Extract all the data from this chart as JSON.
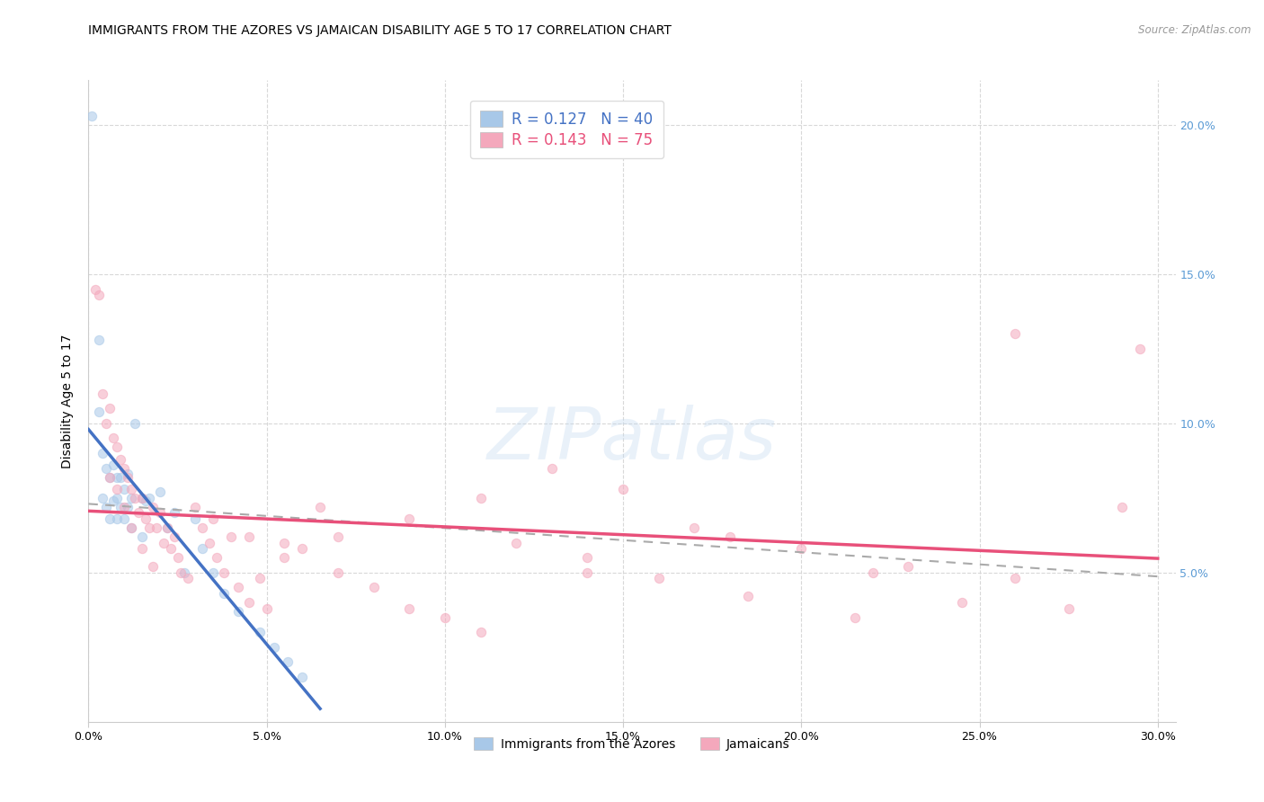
{
  "title": "IMMIGRANTS FROM THE AZORES VS JAMAICAN DISABILITY AGE 5 TO 17 CORRELATION CHART",
  "source": "Source: ZipAtlas.com",
  "ylabel": "Disability Age 5 to 17",
  "xlim": [
    0.0,
    0.305
  ],
  "ylim": [
    0.0,
    0.215
  ],
  "xticks": [
    0.0,
    0.05,
    0.1,
    0.15,
    0.2,
    0.25,
    0.3
  ],
  "yticks": [
    0.05,
    0.1,
    0.15,
    0.2
  ],
  "azores_color": "#a8c8e8",
  "jamaicans_color": "#f4a8bc",
  "azores_line_color": "#4472c4",
  "jamaicans_line_color": "#e8507a",
  "background_color": "#ffffff",
  "grid_color": "#d8d8d8",
  "right_ytick_color": "#5b9bd5",
  "scatter_size": 55,
  "scatter_alpha": 0.55,
  "azores_x": [
    0.001,
    0.003,
    0.003,
    0.004,
    0.004,
    0.005,
    0.005,
    0.006,
    0.006,
    0.007,
    0.007,
    0.008,
    0.008,
    0.008,
    0.009,
    0.009,
    0.01,
    0.01,
    0.011,
    0.011,
    0.012,
    0.012,
    0.013,
    0.015,
    0.015,
    0.016,
    0.017,
    0.02,
    0.022,
    0.024,
    0.027,
    0.03,
    0.032,
    0.035,
    0.038,
    0.042,
    0.048,
    0.052,
    0.056,
    0.06
  ],
  "azores_y": [
    0.203,
    0.104,
    0.128,
    0.09,
    0.075,
    0.085,
    0.072,
    0.082,
    0.068,
    0.086,
    0.074,
    0.082,
    0.075,
    0.068,
    0.082,
    0.072,
    0.078,
    0.068,
    0.083,
    0.072,
    0.075,
    0.065,
    0.1,
    0.075,
    0.062,
    0.074,
    0.075,
    0.077,
    0.065,
    0.07,
    0.05,
    0.068,
    0.058,
    0.05,
    0.043,
    0.037,
    0.03,
    0.025,
    0.02,
    0.015
  ],
  "jamaicans_x": [
    0.002,
    0.003,
    0.004,
    0.005,
    0.006,
    0.006,
    0.007,
    0.008,
    0.008,
    0.009,
    0.01,
    0.01,
    0.011,
    0.012,
    0.012,
    0.013,
    0.014,
    0.015,
    0.015,
    0.016,
    0.017,
    0.018,
    0.018,
    0.019,
    0.02,
    0.021,
    0.022,
    0.023,
    0.024,
    0.025,
    0.026,
    0.028,
    0.03,
    0.032,
    0.034,
    0.036,
    0.038,
    0.04,
    0.042,
    0.045,
    0.048,
    0.05,
    0.055,
    0.06,
    0.065,
    0.07,
    0.08,
    0.09,
    0.1,
    0.11,
    0.12,
    0.13,
    0.14,
    0.15,
    0.16,
    0.17,
    0.185,
    0.2,
    0.215,
    0.23,
    0.245,
    0.26,
    0.275,
    0.29,
    0.035,
    0.045,
    0.055,
    0.07,
    0.09,
    0.11,
    0.14,
    0.18,
    0.22,
    0.26,
    0.295
  ],
  "jamaicans_y": [
    0.145,
    0.143,
    0.11,
    0.1,
    0.105,
    0.082,
    0.095,
    0.092,
    0.078,
    0.088,
    0.085,
    0.072,
    0.082,
    0.078,
    0.065,
    0.075,
    0.07,
    0.075,
    0.058,
    0.068,
    0.065,
    0.072,
    0.052,
    0.065,
    0.07,
    0.06,
    0.065,
    0.058,
    0.062,
    0.055,
    0.05,
    0.048,
    0.072,
    0.065,
    0.06,
    0.055,
    0.05,
    0.062,
    0.045,
    0.04,
    0.048,
    0.038,
    0.06,
    0.058,
    0.072,
    0.05,
    0.045,
    0.038,
    0.035,
    0.03,
    0.06,
    0.085,
    0.055,
    0.078,
    0.048,
    0.065,
    0.042,
    0.058,
    0.035,
    0.052,
    0.04,
    0.048,
    0.038,
    0.072,
    0.068,
    0.062,
    0.055,
    0.062,
    0.068,
    0.075,
    0.05,
    0.062,
    0.05,
    0.13,
    0.125
  ]
}
